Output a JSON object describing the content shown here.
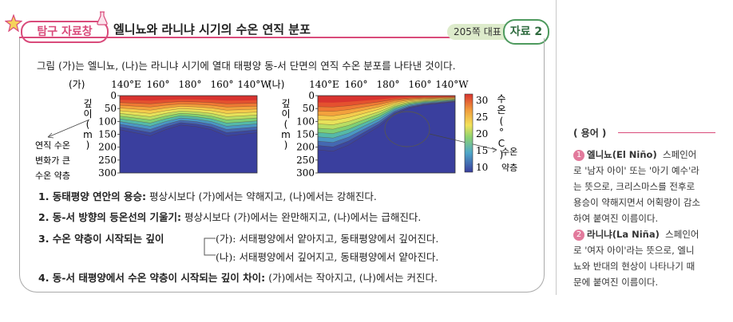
{
  "header": {
    "tag_label": "탐구 자료창",
    "title": "엘니뇨와 라니냐 시기의 수온 연직 분포",
    "page_ref": "205쪽 대표",
    "resource_label": "자료 2"
  },
  "intro": "그림 (가)는 엘니뇨, (나)는 라니냐 시기에 열대 태평양 동-서 단면의 연직 수온 분포를 나타낸 것이다.",
  "chart_data": [
    {
      "type": "heatmap",
      "panel_label": "(가)",
      "x_tick_labels": [
        "140°E",
        "160°",
        "180°",
        "160°",
        "140°W"
      ],
      "y_label": "깊이(m)",
      "y_ticks": [
        0,
        50,
        100,
        150,
        200,
        250,
        300
      ],
      "ylim": [
        0,
        300
      ],
      "thermocline_depth_m": [
        110,
        120,
        130,
        110,
        95,
        100,
        110,
        130,
        125,
        120
      ],
      "annotation": [
        "연직 수온",
        "변화가 큰",
        "수온 약층"
      ]
    },
    {
      "type": "heatmap",
      "panel_label": "(나)",
      "x_tick_labels": [
        "140°E",
        "160°",
        "180°",
        "160°",
        "140°W"
      ],
      "y_label": "깊이(m)",
      "y_ticks": [
        0,
        50,
        100,
        150,
        200,
        250,
        300
      ],
      "ylim": [
        0,
        300
      ],
      "thermocline_depth_m": [
        175,
        180,
        160,
        130,
        100,
        60,
        40,
        30,
        25,
        20
      ],
      "annotation": [
        "수온",
        "약층"
      ],
      "colorbar": {
        "label": "수온(°C)",
        "ticks": [
          10,
          15,
          20,
          25,
          30
        ]
      }
    }
  ],
  "items": [
    {
      "label": "1. 동태평양 연안의 용승:",
      "text": " 평상시보다 (가)에서는 약해지고, (나)에서는 강해진다."
    },
    {
      "label": "2. 동-서 방향의 등온선의 기울기:",
      "text": " 평상시보다 (가)에서는 완만해지고, (나)에서는 급해진다."
    },
    {
      "label": "3. 수온 약층이 시작되는 깊이",
      "sub": [
        "(가): 서태평양에서 얕아지고, 동태평양에서 깊어진다.",
        "(나): 서태평양에서 깊어지고, 동태평양에서 얕아진다."
      ]
    },
    {
      "label": "4. 동-서 태평양에서 수온 약층이 시작되는 깊이 차이:",
      "text": " (가)에서는 작아지고, (나)에서는 커진다."
    }
  ],
  "glossary": {
    "heading": "( 용어 )",
    "term1_title": "엘니뇨(El Niño)",
    "term1_lines": [
      "스페인어",
      "로 '남자 아이' 또는 '아기 예수'라",
      "는 뜻으로, 크리스마스를 전후로",
      "용승이 약해지면서 어획량이 감소",
      "하여 붙여진 이름이다."
    ],
    "term2_title": "라니냐(La Niña)",
    "term2_lines": [
      "스페인어",
      "로 '여자 아이'라는 뜻으로, 엘니",
      "뇨와 반대의 현상이 나타나기 때",
      "문에 붙여진 이름이다."
    ]
  },
  "colors": {
    "accent_pink": "#d94b7b",
    "accent_green": "#4e9a5e"
  }
}
